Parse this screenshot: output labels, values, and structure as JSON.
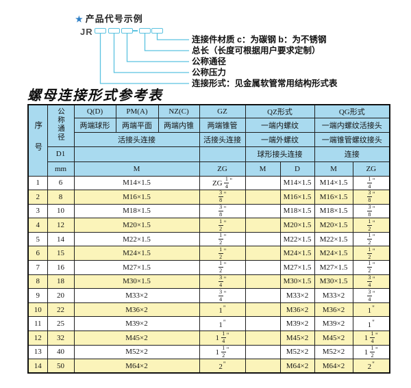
{
  "diagram": {
    "star": "★",
    "title": "产品代号示例",
    "prefix": "JR",
    "labels": [
      "连接件材质  c：为碳钢  b：为不锈钢",
      "总长（长度可根据用户要求定制）",
      "公称通径",
      "公称压力",
      "连接形式：见金属软管常用结构形式表"
    ]
  },
  "table": {
    "title": "螺母连接形式参考表",
    "header": {
      "xuhao": "序号",
      "tongjing": "公称通径",
      "d1": "D1",
      "mm": "mm",
      "q": "Q(D)",
      "pm": "PM(A)",
      "nz": "NZ(C)",
      "gz": "GZ",
      "qz": "QZ形式",
      "qg": "QG形式",
      "q_desc": "两端球形",
      "pm_desc": "两端平面",
      "nz_desc": "两端内锥",
      "gz_desc": "两端锥管",
      "qz_desc1": "一端内螺纹",
      "qg_desc1": "一端内螺纹活接头",
      "live_joint": "活接头连接",
      "gz_live": "活接头连接",
      "qz_desc2": "一端外螺纹",
      "qg_desc2": "一端锥管螺纹接头",
      "qz_conn": "球形接头连接",
      "qg_conn": "连接",
      "m": "M",
      "zg": "ZG",
      "qz_m": "M",
      "qz_d": "D",
      "qg_m": "M",
      "qg_zg": "ZG"
    },
    "rows": [
      {
        "no": "1",
        "dn": "6",
        "m": "M14×1.5",
        "zg": "ZG 1/4\"",
        "qz_m": "",
        "qz_d": "M14×1.5",
        "qg_m": "M14×1.5",
        "qg_zg": "1/4\""
      },
      {
        "no": "2",
        "dn": "8",
        "m": "M16×1.5",
        "zg": "3/8\"",
        "qz_m": "",
        "qz_d": "M16×1.5",
        "qg_m": "M16×1.5",
        "qg_zg": "3/8\""
      },
      {
        "no": "3",
        "dn": "10",
        "m": "M18×1.5",
        "zg": "3/8\"",
        "qz_m": "",
        "qz_d": "M18×1.5",
        "qg_m": "M18×1.5",
        "qg_zg": "3/8\""
      },
      {
        "no": "4",
        "dn": "12",
        "m": "M20×1.5",
        "zg": "1/2\"",
        "qz_m": "",
        "qz_d": "M20×1.5",
        "qg_m": "M20×1.5",
        "qg_zg": "1/2\""
      },
      {
        "no": "5",
        "dn": "14",
        "m": "M22×1.5",
        "zg": "1/2\"",
        "qz_m": "",
        "qz_d": "M22×1.5",
        "qg_m": "M22×1.5",
        "qg_zg": "1/2\""
      },
      {
        "no": "6",
        "dn": "15",
        "m": "M24×1.5",
        "zg": "1/2\"",
        "qz_m": "",
        "qz_d": "M24×1.5",
        "qg_m": "M24×1.5",
        "qg_zg": "1/2\""
      },
      {
        "no": "7",
        "dn": "16",
        "m": "M27×1.5",
        "zg": "1/2\"",
        "qz_m": "",
        "qz_d": "M27×1.5",
        "qg_m": "M27×1.5",
        "qg_zg": "1/2\""
      },
      {
        "no": "8",
        "dn": "18",
        "m": "M30×1.5",
        "zg": "3/4\"",
        "qz_m": "",
        "qz_d": "M30×1.5",
        "qg_m": "M30×1.5",
        "qg_zg": "3/4\""
      },
      {
        "no": "9",
        "dn": "20",
        "m": "M33×2",
        "zg": "3/4\"",
        "qz_m": "",
        "qz_d": "M33×2",
        "qg_m": "M33×2",
        "qg_zg": "3/4\""
      },
      {
        "no": "10",
        "dn": "22",
        "m": "M36×2",
        "zg": "1\"",
        "qz_m": "",
        "qz_d": "M36×2",
        "qg_m": "M36×2",
        "qg_zg": "1\""
      },
      {
        "no": "11",
        "dn": "25",
        "m": "M39×2",
        "zg": "1\"",
        "qz_m": "",
        "qz_d": "M39×2",
        "qg_m": "M39×2",
        "qg_zg": "1\""
      },
      {
        "no": "12",
        "dn": "32",
        "m": "M45×2",
        "zg": "1 1/4\"",
        "qz_m": "",
        "qz_d": "M45×2",
        "qg_m": "M45×2",
        "qg_zg": "1 1/4\""
      },
      {
        "no": "13",
        "dn": "40",
        "m": "M52×2",
        "zg": "1 1/2\"",
        "qz_m": "",
        "qz_d": "M52×2",
        "qg_m": "M52×2",
        "qg_zg": "1 1/2\""
      },
      {
        "no": "14",
        "dn": "50",
        "m": "M64×2",
        "zg": "2\"",
        "qz_m": "",
        "qz_d": "M64×2",
        "qg_m": "M64×2",
        "qg_zg": "2\""
      }
    ]
  },
  "colors": {
    "header_bg": "#a9daef",
    "row_alt_bg": "#fbf4ba",
    "diagram_line": "#5ac2e0",
    "star_color": "#2e7fc6"
  }
}
